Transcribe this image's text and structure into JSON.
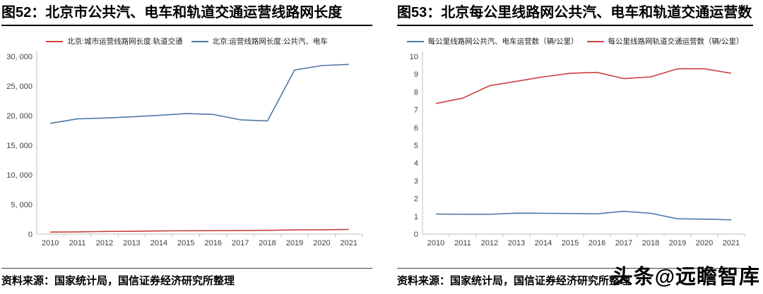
{
  "watermark": {
    "text": "头条@远瞻智库"
  },
  "charts": [
    {
      "title": "图52：北京市公共汽、电车和轨道交通运营线路网长度",
      "source": "资料来源：国家统计局，国信证券经济研究所整理",
      "chart_data": {
        "type": "line",
        "title": "图52：北京市公共汽、电车和轨道交通运营线路网长度",
        "categories": [
          "2010",
          "2011",
          "2012",
          "2013",
          "2014",
          "2015",
          "2016",
          "2017",
          "2018",
          "2019",
          "2020",
          "2021"
        ],
        "series": [
          {
            "name": "北京:城市运营线路网长度:轨道交通",
            "color": "#c9413d",
            "values": [
              336,
              372,
              442,
              465,
              527,
              554,
              574,
              608,
              636,
              699,
              727,
              783
            ]
          },
          {
            "name": "北京:运营线路网长度:公共汽、电车",
            "color": "#4f77a5",
            "values": [
              18700,
              19450,
              19600,
              19800,
              20050,
              20350,
              20200,
              19300,
              19100,
              27700,
              28450,
              28650
            ]
          }
        ],
        "ylim": [
          0,
          30000
        ],
        "ytick_labels": [
          "0",
          "5, 000",
          "10, 000",
          "15, 000",
          "20, 000",
          "25, 000",
          "30, 000"
        ],
        "grid": false,
        "legend_position": "top"
      }
    },
    {
      "title": "图53：北京每公里线路网公共汽、电车和轨道交通运营数",
      "source": "资料来源：国家统计局，国信证券经济研究所整理",
      "chart_data": {
        "type": "line",
        "title": "图53：北京每公里线路网公共汽、电车和轨道交通运营数",
        "categories": [
          "2010",
          "2011",
          "2012",
          "2013",
          "2014",
          "2015",
          "2016",
          "2017",
          "2018",
          "2019",
          "2020",
          "2021"
        ],
        "series": [
          {
            "name": "每公里线路网公共汽、电车运营数（辆/公里）",
            "color": "#4f77a5",
            "values": [
              1.13,
              1.11,
              1.11,
              1.18,
              1.17,
              1.16,
              1.14,
              1.28,
              1.17,
              0.86,
              0.84,
              0.8
            ]
          },
          {
            "name": "每公里线路网轨道交通运营数（辆/公里）",
            "color": "#c9413d",
            "values": [
              7.35,
              7.65,
              8.35,
              8.6,
              8.85,
              9.05,
              9.1,
              8.75,
              8.85,
              9.3,
              9.3,
              9.05
            ]
          }
        ],
        "ylim": [
          0,
          10
        ],
        "ytick_labels": [
          "0",
          "1",
          "2",
          "3",
          "4",
          "5",
          "6",
          "7",
          "8",
          "9",
          "10"
        ],
        "grid": false,
        "legend_position": "top"
      }
    }
  ]
}
